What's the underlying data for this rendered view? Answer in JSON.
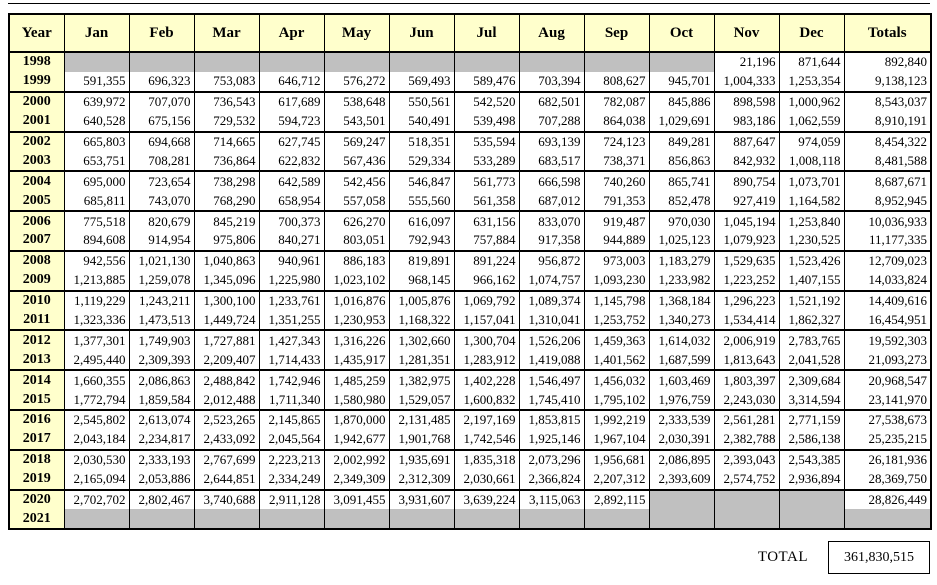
{
  "chart_data": {
    "type": "table",
    "columns": [
      "Year",
      "Jan",
      "Feb",
      "Mar",
      "Apr",
      "May",
      "Jun",
      "Jul",
      "Aug",
      "Sep",
      "Oct",
      "Nov",
      "Dec",
      "Totals"
    ],
    "rows": [
      {
        "year": "1998",
        "months": [
          "",
          "",
          "",
          "",
          "",
          "",
          "",
          "",
          "",
          "",
          "21,196",
          "871,644"
        ],
        "total": "892,840"
      },
      {
        "year": "1999",
        "months": [
          "591,355",
          "696,323",
          "753,083",
          "646,712",
          "576,272",
          "569,493",
          "589,476",
          "703,394",
          "808,627",
          "945,701",
          "1,004,333",
          "1,253,354"
        ],
        "total": "9,138,123"
      },
      {
        "year": "2000",
        "months": [
          "639,972",
          "707,070",
          "736,543",
          "617,689",
          "538,648",
          "550,561",
          "542,520",
          "682,501",
          "782,087",
          "845,886",
          "898,598",
          "1,000,962"
        ],
        "total": "8,543,037"
      },
      {
        "year": "2001",
        "months": [
          "640,528",
          "675,156",
          "729,532",
          "594,723",
          "543,501",
          "540,491",
          "539,498",
          "707,288",
          "864,038",
          "1,029,691",
          "983,186",
          "1,062,559"
        ],
        "total": "8,910,191"
      },
      {
        "year": "2002",
        "months": [
          "665,803",
          "694,668",
          "714,665",
          "627,745",
          "569,247",
          "518,351",
          "535,594",
          "693,139",
          "724,123",
          "849,281",
          "887,647",
          "974,059"
        ],
        "total": "8,454,322"
      },
      {
        "year": "2003",
        "months": [
          "653,751",
          "708,281",
          "736,864",
          "622,832",
          "567,436",
          "529,334",
          "533,289",
          "683,517",
          "738,371",
          "856,863",
          "842,932",
          "1,008,118"
        ],
        "total": "8,481,588"
      },
      {
        "year": "2004",
        "months": [
          "695,000",
          "723,654",
          "738,298",
          "642,589",
          "542,456",
          "546,847",
          "561,773",
          "666,598",
          "740,260",
          "865,741",
          "890,754",
          "1,073,701"
        ],
        "total": "8,687,671"
      },
      {
        "year": "2005",
        "months": [
          "685,811",
          "743,070",
          "768,290",
          "658,954",
          "557,058",
          "555,560",
          "561,358",
          "687,012",
          "791,353",
          "852,478",
          "927,419",
          "1,164,582"
        ],
        "total": "8,952,945"
      },
      {
        "year": "2006",
        "months": [
          "775,518",
          "820,679",
          "845,219",
          "700,373",
          "626,270",
          "616,097",
          "631,156",
          "833,070",
          "919,487",
          "970,030",
          "1,045,194",
          "1,253,840"
        ],
        "total": "10,036,933"
      },
      {
        "year": "2007",
        "months": [
          "894,608",
          "914,954",
          "975,806",
          "840,271",
          "803,051",
          "792,943",
          "757,884",
          "917,358",
          "944,889",
          "1,025,123",
          "1,079,923",
          "1,230,525"
        ],
        "total": "11,177,335"
      },
      {
        "year": "2008",
        "months": [
          "942,556",
          "1,021,130",
          "1,040,863",
          "940,961",
          "886,183",
          "819,891",
          "891,224",
          "956,872",
          "973,003",
          "1,183,279",
          "1,529,635",
          "1,523,426"
        ],
        "total": "12,709,023"
      },
      {
        "year": "2009",
        "months": [
          "1,213,885",
          "1,259,078",
          "1,345,096",
          "1,225,980",
          "1,023,102",
          "968,145",
          "966,162",
          "1,074,757",
          "1,093,230",
          "1,233,982",
          "1,223,252",
          "1,407,155"
        ],
        "total": "14,033,824"
      },
      {
        "year": "2010",
        "months": [
          "1,119,229",
          "1,243,211",
          "1,300,100",
          "1,233,761",
          "1,016,876",
          "1,005,876",
          "1,069,792",
          "1,089,374",
          "1,145,798",
          "1,368,184",
          "1,296,223",
          "1,521,192"
        ],
        "total": "14,409,616"
      },
      {
        "year": "2011",
        "months": [
          "1,323,336",
          "1,473,513",
          "1,449,724",
          "1,351,255",
          "1,230,953",
          "1,168,322",
          "1,157,041",
          "1,310,041",
          "1,253,752",
          "1,340,273",
          "1,534,414",
          "1,862,327"
        ],
        "total": "16,454,951"
      },
      {
        "year": "2012",
        "months": [
          "1,377,301",
          "1,749,903",
          "1,727,881",
          "1,427,343",
          "1,316,226",
          "1,302,660",
          "1,300,704",
          "1,526,206",
          "1,459,363",
          "1,614,032",
          "2,006,919",
          "2,783,765"
        ],
        "total": "19,592,303"
      },
      {
        "year": "2013",
        "months": [
          "2,495,440",
          "2,309,393",
          "2,209,407",
          "1,714,433",
          "1,435,917",
          "1,281,351",
          "1,283,912",
          "1,419,088",
          "1,401,562",
          "1,687,599",
          "1,813,643",
          "2,041,528"
        ],
        "total": "21,093,273"
      },
      {
        "year": "2014",
        "months": [
          "1,660,355",
          "2,086,863",
          "2,488,842",
          "1,742,946",
          "1,485,259",
          "1,382,975",
          "1,402,228",
          "1,546,497",
          "1,456,032",
          "1,603,469",
          "1,803,397",
          "2,309,684"
        ],
        "total": "20,968,547"
      },
      {
        "year": "2015",
        "months": [
          "1,772,794",
          "1,859,584",
          "2,012,488",
          "1,711,340",
          "1,580,980",
          "1,529,057",
          "1,600,832",
          "1,745,410",
          "1,795,102",
          "1,976,759",
          "2,243,030",
          "3,314,594"
        ],
        "total": "23,141,970"
      },
      {
        "year": "2016",
        "months": [
          "2,545,802",
          "2,613,074",
          "2,523,265",
          "2,145,865",
          "1,870,000",
          "2,131,485",
          "2,197,169",
          "1,853,815",
          "1,992,219",
          "2,333,539",
          "2,561,281",
          "2,771,159"
        ],
        "total": "27,538,673"
      },
      {
        "year": "2017",
        "months": [
          "2,043,184",
          "2,234,817",
          "2,433,092",
          "2,045,564",
          "1,942,677",
          "1,901,768",
          "1,742,546",
          "1,925,146",
          "1,967,104",
          "2,030,391",
          "2,382,788",
          "2,586,138"
        ],
        "total": "25,235,215"
      },
      {
        "year": "2018",
        "months": [
          "2,030,530",
          "2,333,193",
          "2,767,699",
          "2,223,213",
          "2,002,992",
          "1,935,691",
          "1,835,318",
          "2,073,296",
          "1,956,681",
          "2,086,895",
          "2,393,043",
          "2,543,385"
        ],
        "total": "26,181,936"
      },
      {
        "year": "2019",
        "months": [
          "2,165,094",
          "2,053,886",
          "2,644,851",
          "2,334,249",
          "2,349,309",
          "2,312,309",
          "2,030,661",
          "2,366,824",
          "2,207,312",
          "2,393,609",
          "2,574,752",
          "2,936,894"
        ],
        "total": "28,369,750"
      },
      {
        "year": "2020",
        "months": [
          "2,702,702",
          "2,802,467",
          "3,740,688",
          "2,911,128",
          "3,091,455",
          "3,931,607",
          "3,639,224",
          "3,115,063",
          "2,892,115",
          "",
          "",
          ""
        ],
        "total": "28,826,449"
      },
      {
        "year": "2021",
        "months": [
          "",
          "",
          "",
          "",
          "",
          "",
          "",
          "",
          "",
          "",
          "",
          ""
        ],
        "total": ""
      }
    ],
    "grand_total_label": "TOTAL",
    "grand_total": "361,830,515",
    "layout": {
      "rows_per_border_group": 2,
      "grid": "on"
    }
  },
  "colors": {
    "header_bg": "#FFFFCC",
    "year_column_bg": "#FFFFCC",
    "empty_cell_bg": "#C0C0C0",
    "border": "#000000",
    "text": "#000000"
  }
}
